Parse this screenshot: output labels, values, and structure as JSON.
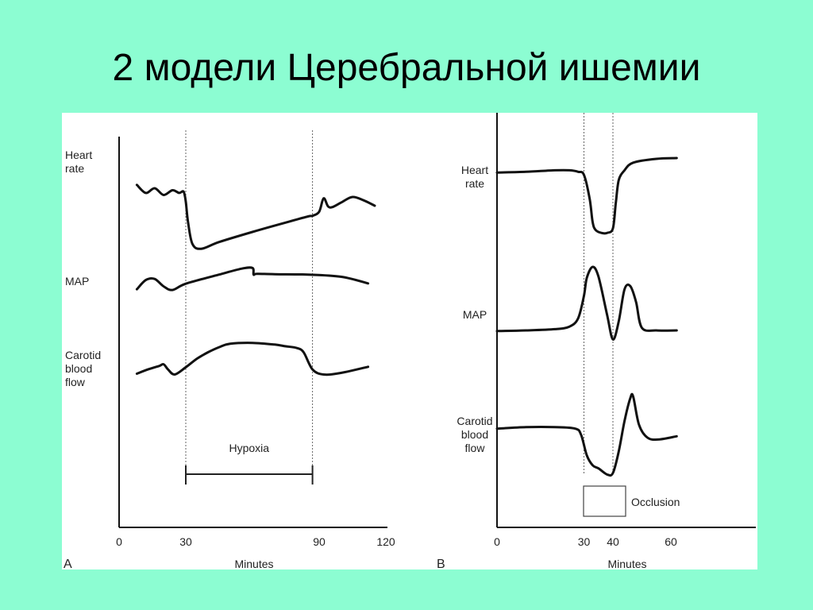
{
  "slide": {
    "title": "2 модели Церебральной ишемии"
  },
  "chart_data": [
    {
      "type": "line",
      "panel": "A",
      "xlabel": "Minutes",
      "xticks": [
        0,
        30,
        90,
        120
      ],
      "xlim": [
        0,
        120
      ],
      "markers": [
        30,
        87
      ],
      "annotation": {
        "label": "Hypoxia",
        "from": 30,
        "to": 87
      },
      "series": [
        {
          "name": "Heart rate",
          "label_lines": [
            "Heart",
            "rate"
          ],
          "x": [
            8,
            12,
            16,
            20,
            24,
            27,
            29,
            30,
            31,
            33,
            37,
            45,
            60,
            75,
            85,
            87,
            90,
            92,
            94,
            96,
            100,
            105,
            110,
            115
          ],
          "y": [
            70,
            58,
            65,
            55,
            62,
            58,
            60,
            45,
            15,
            -18,
            -25,
            -15,
            0,
            14,
            23,
            24,
            30,
            50,
            38,
            37,
            44,
            52,
            47,
            39
          ]
        },
        {
          "name": "MAP",
          "label_lines": [
            "MAP"
          ],
          "x": [
            8,
            12,
            16,
            20,
            24,
            30,
            45,
            55,
            60,
            60.5,
            62,
            70,
            85,
            100,
            112
          ],
          "y": [
            30,
            55,
            58,
            38,
            28,
            45,
            70,
            86,
            88,
            70,
            72,
            71,
            70,
            64,
            46
          ]
        },
        {
          "name": "Carotid blood flow",
          "label_lines": [
            "Carotid",
            "blood",
            "flow"
          ],
          "x": [
            8,
            13,
            18,
            20,
            22,
            25,
            30,
            35,
            40,
            45,
            50,
            60,
            70,
            75,
            80,
            83,
            87,
            92,
            100,
            112
          ],
          "y": [
            40,
            50,
            58,
            62,
            50,
            38,
            55,
            75,
            90,
            102,
            110,
            112,
            108,
            104,
            100,
            90,
            50,
            38,
            42,
            56
          ]
        }
      ]
    },
    {
      "type": "line",
      "panel": "B",
      "xlabel": "Minutes",
      "xticks": [
        0,
        30,
        40,
        60
      ],
      "xlim": [
        0,
        60
      ],
      "markers": [
        30,
        40
      ],
      "annotation": {
        "label": "Occlusion"
      },
      "series": [
        {
          "name": "Heart rate",
          "label_lines": [
            "Heart",
            "rate"
          ],
          "x": [
            0,
            10,
            20,
            25,
            28,
            30,
            32,
            33,
            34,
            36,
            38,
            40,
            41,
            42,
            44,
            47,
            55,
            62
          ],
          "y": [
            85,
            86,
            88,
            88,
            86,
            82,
            50,
            20,
            10,
            6,
            6,
            12,
            45,
            75,
            88,
            98,
            103,
            104
          ]
        },
        {
          "name": "MAP",
          "label_lines": [
            "MAP"
          ],
          "x": [
            0,
            10,
            20,
            25,
            28,
            30,
            31,
            33,
            35,
            38,
            40,
            42,
            44,
            46,
            48,
            50,
            55,
            62
          ],
          "y": [
            25,
            26,
            28,
            32,
            45,
            80,
            108,
            125,
            110,
            50,
            12,
            40,
            90,
            95,
            70,
            30,
            26,
            26
          ]
        },
        {
          "name": "Carotid blood flow",
          "label_lines": [
            "Carotid",
            "blood",
            "flow"
          ],
          "x": [
            0,
            10,
            20,
            27,
            29,
            31,
            33,
            35,
            38,
            40,
            42,
            44,
            46,
            47,
            49,
            52,
            56,
            62
          ],
          "y": [
            70,
            72,
            72,
            70,
            62,
            35,
            22,
            18,
            10,
            12,
            40,
            80,
            110,
            112,
            75,
            58,
            56,
            60
          ]
        }
      ]
    }
  ]
}
